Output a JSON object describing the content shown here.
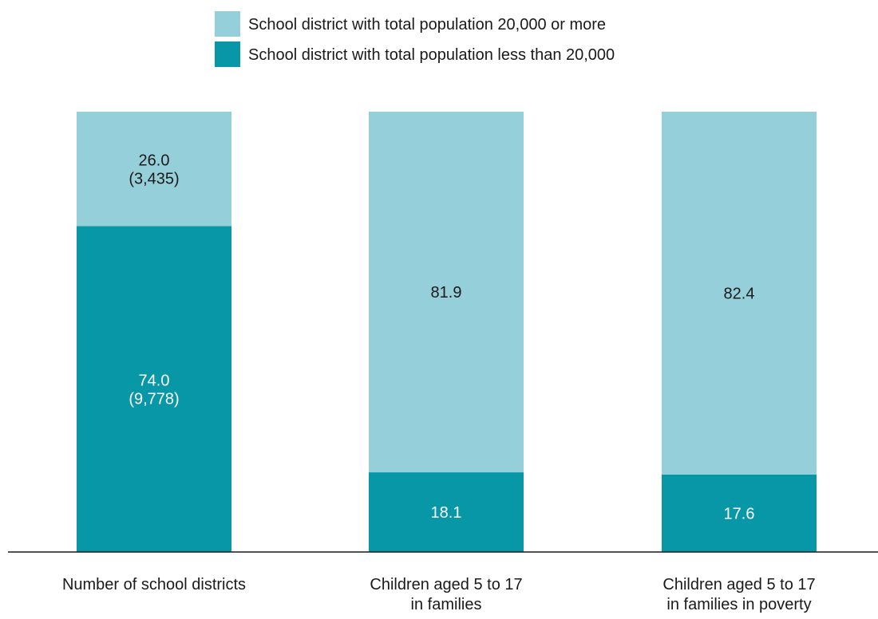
{
  "chart_data": {
    "type": "bar",
    "stacked": true,
    "percent": true,
    "categories": [
      [
        "Number of school districts"
      ],
      [
        "Children aged 5 to 17",
        "in families"
      ],
      [
        "Children aged 5 to 17",
        "in families in poverty"
      ]
    ],
    "series": [
      {
        "name": "School district with total population less than 20,000",
        "color": "#0897a6",
        "values": [
          74.0,
          18.1,
          17.6
        ],
        "labels": [
          [
            "74.0",
            "(9,778)"
          ],
          [
            "18.1"
          ],
          [
            "17.6"
          ]
        ]
      },
      {
        "name": "School district with total population 20,000 or more",
        "color": "#95d0da",
        "values": [
          26.0,
          81.9,
          82.4
        ],
        "labels": [
          [
            "26.0",
            "(3,435)"
          ],
          [
            "81.9"
          ],
          [
            "82.4"
          ]
        ]
      }
    ],
    "legend_order": [
      1,
      0
    ],
    "legend_position": "top-center",
    "ylim": [
      0,
      100
    ],
    "grid": false
  }
}
